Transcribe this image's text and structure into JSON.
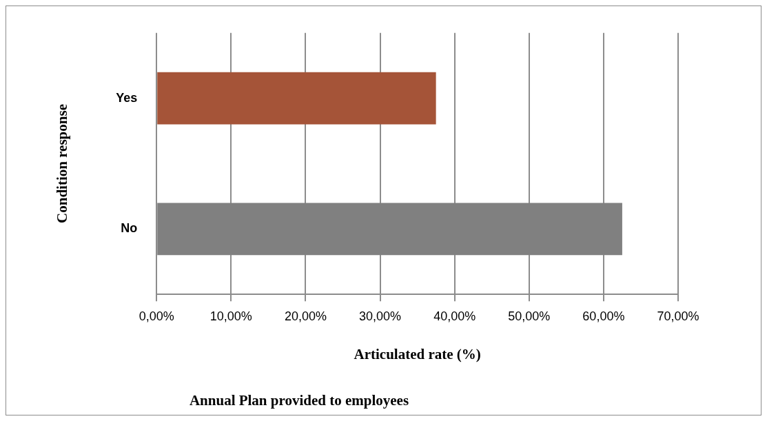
{
  "chart_data": {
    "type": "bar",
    "orientation": "horizontal",
    "categories": [
      "Yes",
      "No"
    ],
    "values": [
      37.5,
      62.5
    ],
    "colors": [
      "#a55438",
      "#808080"
    ],
    "xlabel": "Articulated rate (%)",
    "ylabel": "Condition response",
    "annotations": [
      "Annual Plan provided to employees"
    ],
    "xlim": [
      0,
      70
    ],
    "xticks": [
      {
        "value": 0,
        "label": "0,00%"
      },
      {
        "value": 10,
        "label": "10,00%"
      },
      {
        "value": 20,
        "label": "20,00%"
      },
      {
        "value": 30,
        "label": "30,00%"
      },
      {
        "value": 40,
        "label": "40,00%"
      },
      {
        "value": 50,
        "label": "50,00%"
      },
      {
        "value": 60,
        "label": "60,00%"
      },
      {
        "value": 70,
        "label": "70,00%"
      }
    ],
    "grid": "x",
    "legend": false
  }
}
